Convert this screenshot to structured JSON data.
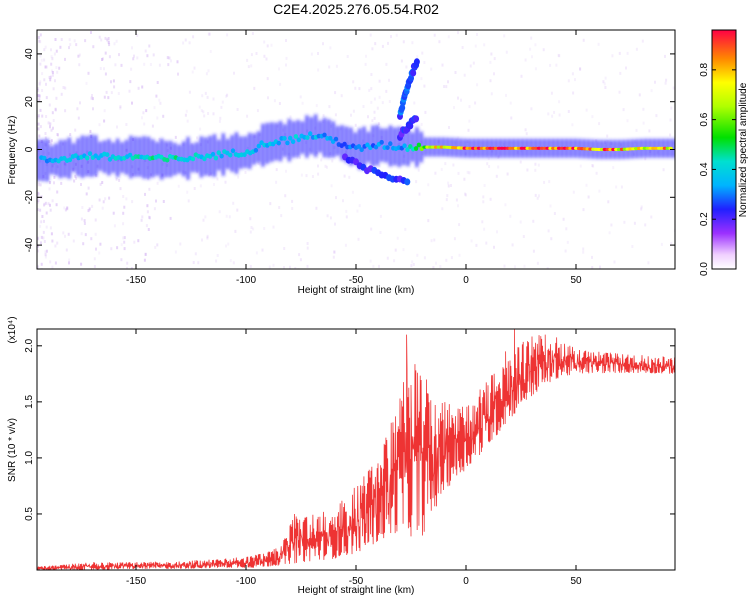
{
  "title": "C2E4.2025.276.05.54.R02",
  "chart_data": [
    {
      "type": "heatmap",
      "name": "spectrogram",
      "xlabel": "Height of straight line (km)",
      "ylabel": "Frequency (Hz)",
      "xlim": [
        -195,
        95
      ],
      "ylim": [
        -50,
        50
      ],
      "xticks": [
        "-150",
        "-100",
        "-50",
        "0",
        "50"
      ],
      "xtick_values": [
        -150,
        -100,
        -50,
        0,
        50
      ],
      "yticks": [
        "-40",
        "-20",
        "0",
        "20",
        "40"
      ],
      "ytick_values": [
        -40,
        -20,
        0,
        20,
        40
      ],
      "ridge": [
        {
          "x": -190,
          "y": -4.5,
          "a": 0.32
        },
        {
          "x": -180,
          "y": -3.5,
          "a": 0.38
        },
        {
          "x": -170,
          "y": -2.5,
          "a": 0.4
        },
        {
          "x": -160,
          "y": -3.5,
          "a": 0.42
        },
        {
          "x": -150,
          "y": -3.0,
          "a": 0.42
        },
        {
          "x": -140,
          "y": -4.0,
          "a": 0.45
        },
        {
          "x": -130,
          "y": -4.0,
          "a": 0.45
        },
        {
          "x": -120,
          "y": -3.0,
          "a": 0.4
        },
        {
          "x": -110,
          "y": -2.0,
          "a": 0.38
        },
        {
          "x": -100,
          "y": -1.0,
          "a": 0.36
        },
        {
          "x": -90,
          "y": 3.0,
          "a": 0.36
        },
        {
          "x": -80,
          "y": 4.0,
          "a": 0.4
        },
        {
          "x": -70,
          "y": 6.0,
          "a": 0.36
        },
        {
          "x": -60,
          "y": 4.0,
          "a": 0.3
        },
        {
          "x": -50,
          "y": 0.0,
          "a": 0.3
        },
        {
          "x": -40,
          "y": 2.0,
          "a": 0.32
        },
        {
          "x": -30,
          "y": 1.0,
          "a": 0.3
        },
        {
          "x": -20,
          "y": 1.0,
          "a": 0.6
        },
        {
          "x": -10,
          "y": 1.0,
          "a": 0.78
        },
        {
          "x": 0,
          "y": 0.5,
          "a": 0.88
        },
        {
          "x": 10,
          "y": 0.5,
          "a": 0.92
        },
        {
          "x": 20,
          "y": 0.5,
          "a": 0.92
        },
        {
          "x": 30,
          "y": 0.5,
          "a": 0.9
        },
        {
          "x": 40,
          "y": 0.5,
          "a": 0.88
        },
        {
          "x": 50,
          "y": 0.5,
          "a": 0.86
        },
        {
          "x": 60,
          "y": 0.0,
          "a": 0.8
        },
        {
          "x": 70,
          "y": 0.0,
          "a": 0.76
        },
        {
          "x": 80,
          "y": 0.5,
          "a": 0.74
        },
        {
          "x": 90,
          "y": 0.5,
          "a": 0.7
        }
      ],
      "branches": [
        {
          "x": [
            -30,
            -28,
            -26,
            -24,
            -22
          ],
          "y": [
            14,
            22,
            28,
            33,
            38
          ],
          "a": 0.3
        },
        {
          "x": [
            -55,
            -45,
            -35,
            -25
          ],
          "y": [
            -4,
            -8,
            -11,
            -14
          ],
          "a": 0.28
        },
        {
          "x": [
            -30,
            -26,
            -22
          ],
          "y": [
            6,
            10,
            14
          ],
          "a": 0.25
        }
      ]
    },
    {
      "type": "line",
      "name": "snr",
      "xlabel": "Height of straight line (km)",
      "ylabel": "SNR (10 * v/v)",
      "y_multiplier": "(x10⁴)",
      "xlim": [
        -195,
        95
      ],
      "ylim": [
        0,
        2.15
      ],
      "xticks": [
        "-150",
        "-100",
        "-50",
        "0",
        "50"
      ],
      "xtick_values": [
        -150,
        -100,
        -50,
        0,
        50
      ],
      "yticks": [
        "0.5",
        "1.0",
        "1.5",
        "2.0"
      ],
      "ytick_values": [
        0.5,
        1.0,
        1.5,
        2.0
      ],
      "color": "#ee3333",
      "envelope": [
        {
          "x": -195,
          "lo": 0.0,
          "hi": 0.03
        },
        {
          "x": -170,
          "lo": 0.0,
          "hi": 0.07
        },
        {
          "x": -150,
          "lo": 0.01,
          "hi": 0.07
        },
        {
          "x": -130,
          "lo": 0.01,
          "hi": 0.08
        },
        {
          "x": -110,
          "lo": 0.02,
          "hi": 0.1
        },
        {
          "x": -95,
          "lo": 0.02,
          "hi": 0.14
        },
        {
          "x": -85,
          "lo": 0.04,
          "hi": 0.2
        },
        {
          "x": -78,
          "lo": 0.06,
          "hi": 0.48
        },
        {
          "x": -70,
          "lo": 0.08,
          "hi": 0.5
        },
        {
          "x": -60,
          "lo": 0.1,
          "hi": 0.55
        },
        {
          "x": -50,
          "lo": 0.15,
          "hi": 0.75
        },
        {
          "x": -40,
          "lo": 0.25,
          "hi": 1.0
        },
        {
          "x": -30,
          "lo": 0.35,
          "hi": 1.6
        },
        {
          "x": -25,
          "lo": 0.3,
          "hi": 2.05
        },
        {
          "x": -20,
          "lo": 0.3,
          "hi": 1.7
        },
        {
          "x": -15,
          "lo": 0.5,
          "hi": 1.5
        },
        {
          "x": -10,
          "lo": 0.7,
          "hi": 1.5
        },
        {
          "x": 0,
          "lo": 0.9,
          "hi": 1.45
        },
        {
          "x": 10,
          "lo": 1.1,
          "hi": 1.7
        },
        {
          "x": 20,
          "lo": 1.35,
          "hi": 1.95
        },
        {
          "x": 30,
          "lo": 1.55,
          "hi": 2.1
        },
        {
          "x": 40,
          "lo": 1.7,
          "hi": 2.1
        },
        {
          "x": 50,
          "lo": 1.75,
          "hi": 1.97
        },
        {
          "x": 70,
          "lo": 1.76,
          "hi": 1.93
        },
        {
          "x": 95,
          "lo": 1.75,
          "hi": 1.9
        }
      ],
      "spikes": [
        {
          "x": -78,
          "y": 0.5
        },
        {
          "x": -27,
          "y": 2.1
        },
        {
          "x": -25,
          "y": 1.65
        },
        {
          "x": -18,
          "y": 1.7
        },
        {
          "x": 18,
          "y": 1.95
        },
        {
          "x": 22,
          "y": 2.15
        },
        {
          "x": 36,
          "y": 2.1
        }
      ]
    }
  ],
  "colorbar": {
    "label": "Normalized spectral amplitude",
    "range": [
      0.0,
      0.96
    ],
    "ticks": [
      "0.0",
      "0.2",
      "0.4",
      "0.6",
      "0.8"
    ],
    "tick_values": [
      0.0,
      0.2,
      0.4,
      0.6,
      0.8
    ]
  }
}
